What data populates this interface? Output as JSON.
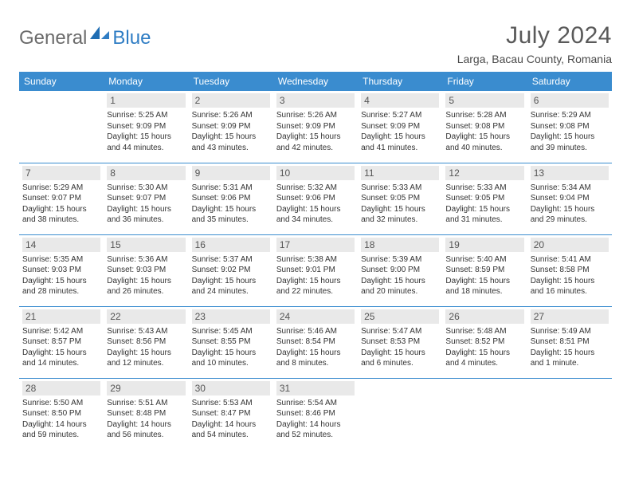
{
  "brand": {
    "part1": "General",
    "part2": "Blue"
  },
  "title": "July 2024",
  "location": "Larga, Bacau County, Romania",
  "colors": {
    "header_bg": "#3a8ccf",
    "header_fg": "#ffffff",
    "daynum_bg": "#e9e9e9",
    "border": "#3a8ccf",
    "logo_gray": "#6b6b6b",
    "logo_blue": "#2f7dc4"
  },
  "weekdays": [
    "Sunday",
    "Monday",
    "Tuesday",
    "Wednesday",
    "Thursday",
    "Friday",
    "Saturday"
  ],
  "start_offset": 1,
  "days": [
    {
      "n": "1",
      "sr": "5:25 AM",
      "ss": "9:09 PM",
      "dl": "15 hours and 44 minutes."
    },
    {
      "n": "2",
      "sr": "5:26 AM",
      "ss": "9:09 PM",
      "dl": "15 hours and 43 minutes."
    },
    {
      "n": "3",
      "sr": "5:26 AM",
      "ss": "9:09 PM",
      "dl": "15 hours and 42 minutes."
    },
    {
      "n": "4",
      "sr": "5:27 AM",
      "ss": "9:09 PM",
      "dl": "15 hours and 41 minutes."
    },
    {
      "n": "5",
      "sr": "5:28 AM",
      "ss": "9:08 PM",
      "dl": "15 hours and 40 minutes."
    },
    {
      "n": "6",
      "sr": "5:29 AM",
      "ss": "9:08 PM",
      "dl": "15 hours and 39 minutes."
    },
    {
      "n": "7",
      "sr": "5:29 AM",
      "ss": "9:07 PM",
      "dl": "15 hours and 38 minutes."
    },
    {
      "n": "8",
      "sr": "5:30 AM",
      "ss": "9:07 PM",
      "dl": "15 hours and 36 minutes."
    },
    {
      "n": "9",
      "sr": "5:31 AM",
      "ss": "9:06 PM",
      "dl": "15 hours and 35 minutes."
    },
    {
      "n": "10",
      "sr": "5:32 AM",
      "ss": "9:06 PM",
      "dl": "15 hours and 34 minutes."
    },
    {
      "n": "11",
      "sr": "5:33 AM",
      "ss": "9:05 PM",
      "dl": "15 hours and 32 minutes."
    },
    {
      "n": "12",
      "sr": "5:33 AM",
      "ss": "9:05 PM",
      "dl": "15 hours and 31 minutes."
    },
    {
      "n": "13",
      "sr": "5:34 AM",
      "ss": "9:04 PM",
      "dl": "15 hours and 29 minutes."
    },
    {
      "n": "14",
      "sr": "5:35 AM",
      "ss": "9:03 PM",
      "dl": "15 hours and 28 minutes."
    },
    {
      "n": "15",
      "sr": "5:36 AM",
      "ss": "9:03 PM",
      "dl": "15 hours and 26 minutes."
    },
    {
      "n": "16",
      "sr": "5:37 AM",
      "ss": "9:02 PM",
      "dl": "15 hours and 24 minutes."
    },
    {
      "n": "17",
      "sr": "5:38 AM",
      "ss": "9:01 PM",
      "dl": "15 hours and 22 minutes."
    },
    {
      "n": "18",
      "sr": "5:39 AM",
      "ss": "9:00 PM",
      "dl": "15 hours and 20 minutes."
    },
    {
      "n": "19",
      "sr": "5:40 AM",
      "ss": "8:59 PM",
      "dl": "15 hours and 18 minutes."
    },
    {
      "n": "20",
      "sr": "5:41 AM",
      "ss": "8:58 PM",
      "dl": "15 hours and 16 minutes."
    },
    {
      "n": "21",
      "sr": "5:42 AM",
      "ss": "8:57 PM",
      "dl": "15 hours and 14 minutes."
    },
    {
      "n": "22",
      "sr": "5:43 AM",
      "ss": "8:56 PM",
      "dl": "15 hours and 12 minutes."
    },
    {
      "n": "23",
      "sr": "5:45 AM",
      "ss": "8:55 PM",
      "dl": "15 hours and 10 minutes."
    },
    {
      "n": "24",
      "sr": "5:46 AM",
      "ss": "8:54 PM",
      "dl": "15 hours and 8 minutes."
    },
    {
      "n": "25",
      "sr": "5:47 AM",
      "ss": "8:53 PM",
      "dl": "15 hours and 6 minutes."
    },
    {
      "n": "26",
      "sr": "5:48 AM",
      "ss": "8:52 PM",
      "dl": "15 hours and 4 minutes."
    },
    {
      "n": "27",
      "sr": "5:49 AM",
      "ss": "8:51 PM",
      "dl": "15 hours and 1 minute."
    },
    {
      "n": "28",
      "sr": "5:50 AM",
      "ss": "8:50 PM",
      "dl": "14 hours and 59 minutes."
    },
    {
      "n": "29",
      "sr": "5:51 AM",
      "ss": "8:48 PM",
      "dl": "14 hours and 56 minutes."
    },
    {
      "n": "30",
      "sr": "5:53 AM",
      "ss": "8:47 PM",
      "dl": "14 hours and 54 minutes."
    },
    {
      "n": "31",
      "sr": "5:54 AM",
      "ss": "8:46 PM",
      "dl": "14 hours and 52 minutes."
    }
  ],
  "labels": {
    "sunrise": "Sunrise:",
    "sunset": "Sunset:",
    "daylight": "Daylight:"
  }
}
